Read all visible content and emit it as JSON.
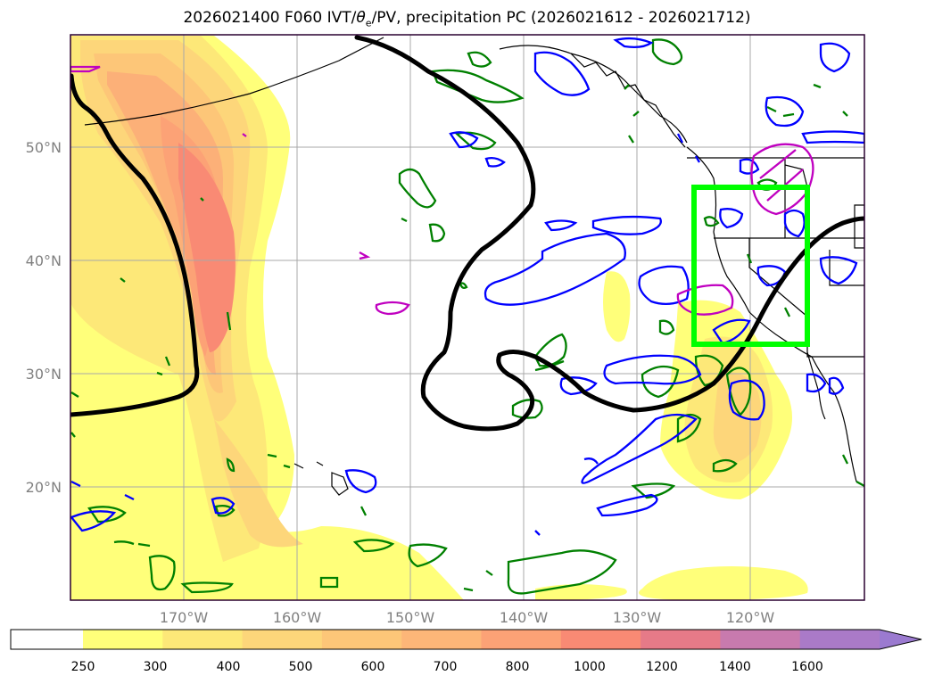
{
  "title": {
    "prefix": "2026021400 F060 IVT/",
    "theta": "θ",
    "theta_sub": "e",
    "suffix": "/PV, precipitation PC (2026021612 - 2026021712)"
  },
  "map": {
    "lat_labels": [
      "50°N",
      "40°N",
      "30°N",
      "20°N"
    ],
    "lon_labels": [
      "170°W",
      "160°W",
      "150°W",
      "140°W",
      "130°W",
      "120°W"
    ],
    "box_color": "#00ff00",
    "front_color": "#000000",
    "contour_colors": {
      "green": "#008000",
      "blue": "#0000ff",
      "magenta": "#c000c0"
    }
  },
  "colorbar": {
    "levels": [
      "250",
      "300",
      "400",
      "500",
      "600",
      "700",
      "800",
      "1000",
      "1200",
      "1400",
      "1600"
    ],
    "colors": [
      "#ffff7a",
      "#fde878",
      "#fdd67a",
      "#fdc678",
      "#fdb678",
      "#fca276",
      "#f98a74",
      "#e67a88",
      "#c87aae",
      "#aa7ac8"
    ],
    "extend_color": "#9b7ad0"
  }
}
